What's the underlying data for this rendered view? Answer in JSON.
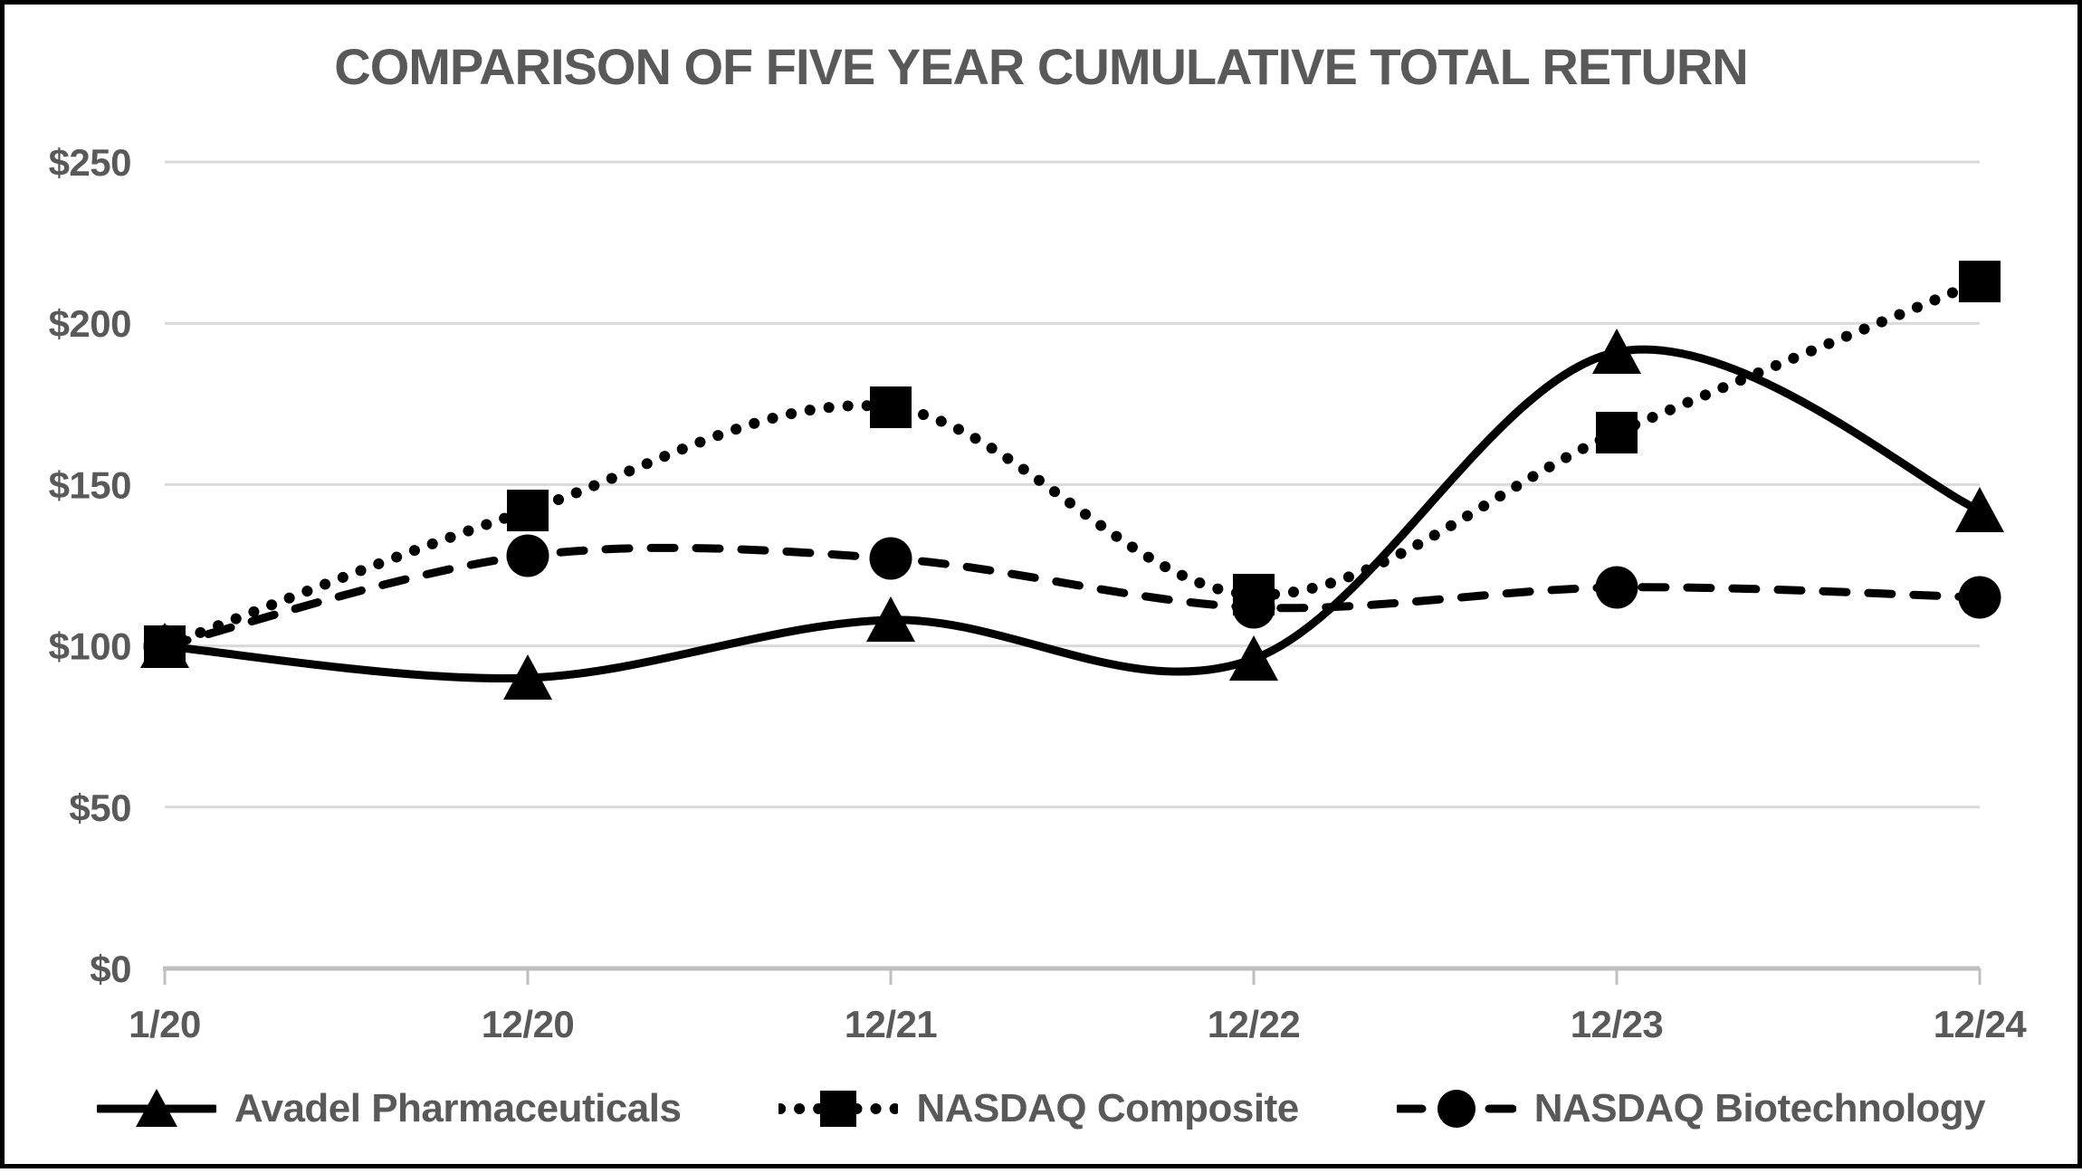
{
  "title": "COMPARISON OF FIVE YEAR CUMULATIVE TOTAL RETURN",
  "chart_data": {
    "type": "line",
    "title": "COMPARISON OF FIVE YEAR CUMULATIVE TOTAL RETURN",
    "categories": [
      "1/20",
      "12/20",
      "12/21",
      "12/22",
      "12/23",
      "12/24"
    ],
    "series": [
      {
        "name": "Avadel Pharmaceuticals",
        "marker": "triangle",
        "line_style": "solid",
        "values": [
          100,
          90,
          108,
          96,
          191,
          142
        ]
      },
      {
        "name": "NASDAQ Composite",
        "marker": "square",
        "line_style": "dotted",
        "values": [
          100,
          142,
          174,
          116,
          166,
          213
        ]
      },
      {
        "name": "NASDAQ Biotechnology",
        "marker": "circle",
        "line_style": "dashed",
        "values": [
          100,
          128,
          127,
          112,
          118,
          115
        ]
      }
    ],
    "y_ticks": [
      {
        "label": "$0",
        "value": 0
      },
      {
        "label": "$50",
        "value": 50
      },
      {
        "label": "$100",
        "value": 100
      },
      {
        "label": "$150",
        "value": 150
      },
      {
        "label": "$200",
        "value": 200
      },
      {
        "label": "$250",
        "value": 250
      }
    ],
    "ylim": [
      0,
      250
    ],
    "grid": "horizontal",
    "legend_position": "bottom",
    "colors": {
      "series": "#000000",
      "text": "#595959",
      "gridline": "#D9D9D9",
      "axis_line": "#BFBFBF",
      "background": "#FFFFFF",
      "border": "#000000"
    }
  }
}
